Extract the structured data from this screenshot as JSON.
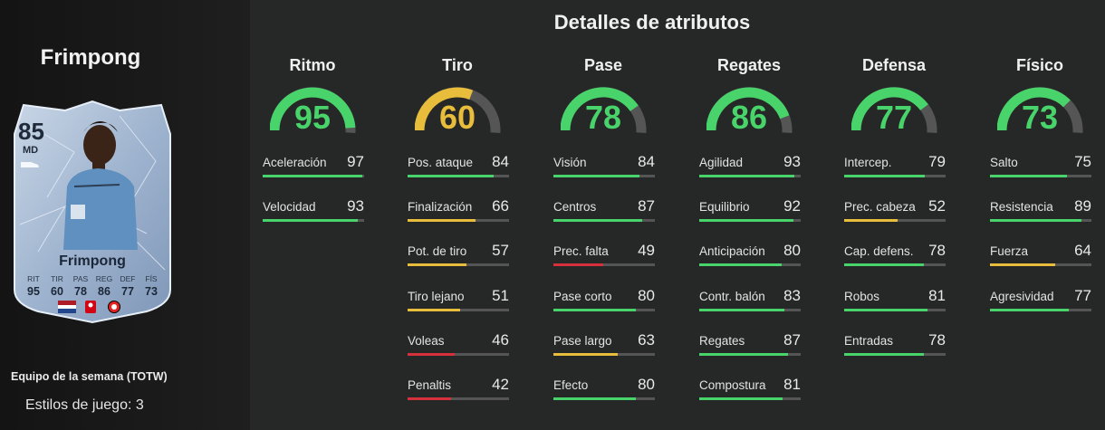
{
  "player": {
    "name": "Frimpong",
    "card": {
      "rating": "85",
      "position": "MD",
      "name": "Frimpong",
      "stat_labels": [
        "RIT",
        "TIR",
        "PAS",
        "REG",
        "DEF",
        "FÍS"
      ],
      "stat_values": [
        "95",
        "60",
        "78",
        "86",
        "77",
        "73"
      ]
    },
    "event": "Equipo de la semana (TOTW)",
    "playstyles": "Estilos de juego: 3"
  },
  "section_title": "Detalles de atributos",
  "colors": {
    "green": "#48d46a",
    "yellow": "#e8bd3c",
    "red": "#d5303c",
    "track": "#555555"
  },
  "categories": [
    {
      "name": "Ritmo",
      "value": 95,
      "level": "green",
      "stats": [
        {
          "label": "Aceleración",
          "value": 97,
          "level": "green"
        },
        {
          "label": "Velocidad",
          "value": 93,
          "level": "green"
        }
      ]
    },
    {
      "name": "Tiro",
      "value": 60,
      "level": "yellow",
      "stats": [
        {
          "label": "Pos. ataque",
          "value": 84,
          "level": "green"
        },
        {
          "label": "Finalización",
          "value": 66,
          "level": "yellow"
        },
        {
          "label": "Pot. de tiro",
          "value": 57,
          "level": "yellow"
        },
        {
          "label": "Tiro lejano",
          "value": 51,
          "level": "yellow"
        },
        {
          "label": "Voleas",
          "value": 46,
          "level": "red"
        },
        {
          "label": "Penaltis",
          "value": 42,
          "level": "red"
        }
      ]
    },
    {
      "name": "Pase",
      "value": 78,
      "level": "green",
      "stats": [
        {
          "label": "Visión",
          "value": 84,
          "level": "green"
        },
        {
          "label": "Centros",
          "value": 87,
          "level": "green"
        },
        {
          "label": "Prec. falta",
          "value": 49,
          "level": "red"
        },
        {
          "label": "Pase corto",
          "value": 80,
          "level": "green"
        },
        {
          "label": "Pase largo",
          "value": 63,
          "level": "yellow"
        },
        {
          "label": "Efecto",
          "value": 80,
          "level": "green"
        }
      ]
    },
    {
      "name": "Regates",
      "value": 86,
      "level": "green",
      "stats": [
        {
          "label": "Agilidad",
          "value": 93,
          "level": "green"
        },
        {
          "label": "Equilibrio",
          "value": 92,
          "level": "green"
        },
        {
          "label": "Anticipación",
          "value": 80,
          "level": "green"
        },
        {
          "label": "Contr. balón",
          "value": 83,
          "level": "green"
        },
        {
          "label": "Regates",
          "value": 87,
          "level": "green"
        },
        {
          "label": "Compostura",
          "value": 81,
          "level": "green"
        }
      ]
    },
    {
      "name": "Defensa",
      "value": 77,
      "level": "green",
      "stats": [
        {
          "label": "Intercep.",
          "value": 79,
          "level": "green"
        },
        {
          "label": "Prec. cabeza",
          "value": 52,
          "level": "yellow"
        },
        {
          "label": "Cap. defens.",
          "value": 78,
          "level": "green"
        },
        {
          "label": "Robos",
          "value": 81,
          "level": "green"
        },
        {
          "label": "Entradas",
          "value": 78,
          "level": "green"
        }
      ]
    },
    {
      "name": "Físico",
      "value": 73,
      "level": "green",
      "stats": [
        {
          "label": "Salto",
          "value": 75,
          "level": "green"
        },
        {
          "label": "Resistencia",
          "value": 89,
          "level": "green"
        },
        {
          "label": "Fuerza",
          "value": 64,
          "level": "yellow"
        },
        {
          "label": "Agresividad",
          "value": 77,
          "level": "green"
        }
      ]
    }
  ]
}
